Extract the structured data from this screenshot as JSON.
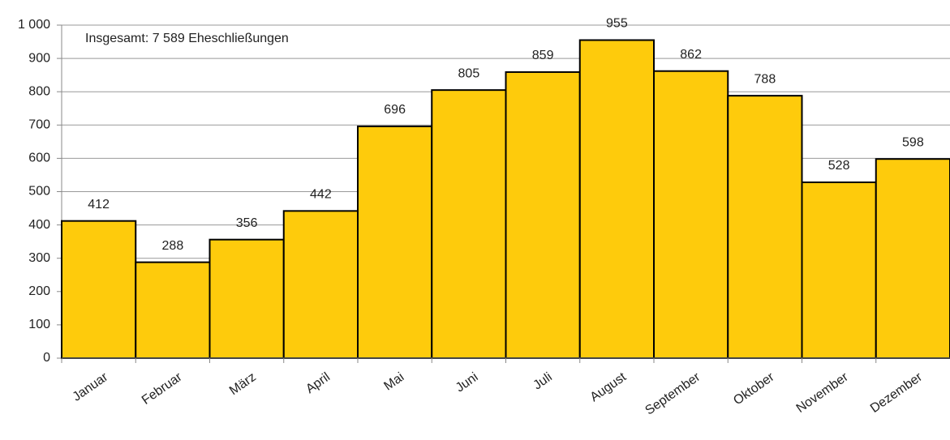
{
  "chart_data": {
    "type": "bar",
    "annotation": "Insgesamt: 7 589 Eheschließungen",
    "categories": [
      "Januar",
      "Februar",
      "März",
      "April",
      "Mai",
      "Juni",
      "Juli",
      "August",
      "September",
      "Oktober",
      "November",
      "Dezember"
    ],
    "values": [
      412,
      288,
      356,
      442,
      696,
      805,
      859,
      955,
      862,
      788,
      528,
      598
    ],
    "color": "#fecb0c",
    "ylim": [
      0,
      1000
    ],
    "yticks": [
      0,
      100,
      200,
      300,
      400,
      500,
      600,
      700,
      800,
      900,
      {
        "value": 1000,
        "label": "1 000"
      }
    ],
    "grid": true
  }
}
